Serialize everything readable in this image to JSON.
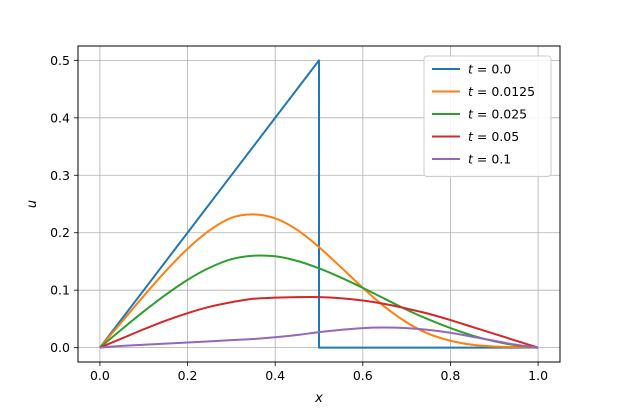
{
  "chart_data": {
    "type": "line",
    "xlabel": "x",
    "ylabel": "u",
    "xlim": [
      -0.05,
      1.05
    ],
    "ylim": [
      -0.025,
      0.525
    ],
    "xticks": [
      "0.0",
      "0.2",
      "0.4",
      "0.6",
      "0.8",
      "1.0"
    ],
    "yticks": [
      "0.0",
      "0.1",
      "0.2",
      "0.3",
      "0.4",
      "0.5"
    ],
    "grid": true,
    "legend_position": "top-right",
    "series": [
      {
        "name": "t = 0.0",
        "legend_var": "t",
        "legend_value": "= 0.0",
        "color": "#1f77b4",
        "x": [
          0.0,
          0.5,
          0.5,
          1.0
        ],
        "y": [
          0.0,
          0.5,
          0.0,
          0.0
        ]
      },
      {
        "name": "t = 0.0125",
        "legend_var": "t",
        "legend_value": "= 0.0125",
        "color": "#ff7f0e",
        "x": [
          0.0,
          0.05,
          0.1,
          0.15,
          0.2,
          0.25,
          0.3,
          0.35,
          0.4,
          0.45,
          0.5,
          0.55,
          0.6,
          0.65,
          0.7,
          0.75,
          0.8,
          0.85,
          0.9,
          0.95,
          1.0
        ],
        "y": [
          0.0,
          0.045,
          0.09,
          0.133,
          0.172,
          0.204,
          0.226,
          0.232,
          0.225,
          0.205,
          0.175,
          0.14,
          0.104,
          0.071,
          0.044,
          0.024,
          0.012,
          0.005,
          0.002,
          0.001,
          0.0
        ]
      },
      {
        "name": "t = 0.025",
        "legend_var": "t",
        "legend_value": "= 0.025",
        "color": "#2ca02c",
        "x": [
          0.0,
          0.05,
          0.1,
          0.15,
          0.2,
          0.25,
          0.3,
          0.35,
          0.4,
          0.45,
          0.5,
          0.55,
          0.6,
          0.65,
          0.7,
          0.75,
          0.8,
          0.85,
          0.9,
          0.95,
          1.0
        ],
        "y": [
          0.0,
          0.032,
          0.063,
          0.092,
          0.118,
          0.139,
          0.154,
          0.16,
          0.159,
          0.151,
          0.138,
          0.122,
          0.104,
          0.085,
          0.066,
          0.049,
          0.034,
          0.021,
          0.011,
          0.004,
          0.0
        ]
      },
      {
        "name": "t = 0.05",
        "legend_var": "t",
        "legend_value": "= 0.05",
        "color": "#d62728",
        "x": [
          0.0,
          0.05,
          0.1,
          0.15,
          0.2,
          0.25,
          0.3,
          0.35,
          0.4,
          0.45,
          0.5,
          0.55,
          0.6,
          0.65,
          0.7,
          0.75,
          0.8,
          0.85,
          0.9,
          0.95,
          1.0
        ],
        "y": [
          0.0,
          0.016,
          0.032,
          0.047,
          0.06,
          0.071,
          0.079,
          0.085,
          0.087,
          0.088,
          0.088,
          0.086,
          0.082,
          0.076,
          0.068,
          0.059,
          0.048,
          0.036,
          0.024,
          0.012,
          0.0
        ]
      },
      {
        "name": "t = 0.1",
        "legend_var": "t",
        "legend_value": "= 0.1",
        "color": "#9467bd",
        "x": [
          0.0,
          0.05,
          0.1,
          0.15,
          0.2,
          0.25,
          0.3,
          0.35,
          0.4,
          0.45,
          0.5,
          0.55,
          0.6,
          0.65,
          0.7,
          0.75,
          0.8,
          0.85,
          0.9,
          0.95,
          1.0
        ],
        "y": [
          0.0,
          0.003,
          0.005,
          0.007,
          0.009,
          0.011,
          0.013,
          0.015,
          0.018,
          0.022,
          0.027,
          0.031,
          0.034,
          0.035,
          0.034,
          0.031,
          0.026,
          0.019,
          0.012,
          0.005,
          0.0
        ]
      }
    ]
  }
}
